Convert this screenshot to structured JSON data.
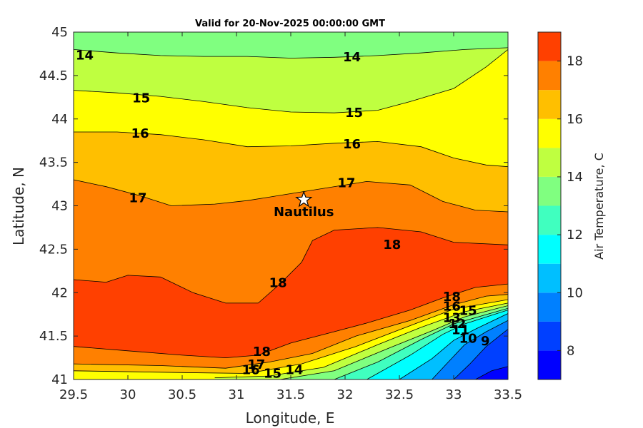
{
  "chart_data": {
    "type": "contour",
    "title": "Valid for 20-Nov-2025 00:00:00 GMT",
    "xlabel": "Longitude, E",
    "ylabel": "Latitude, N",
    "xlim": [
      29.5,
      33.5
    ],
    "ylim": [
      41,
      45
    ],
    "xticks": [
      "29.5",
      "30",
      "30.5",
      "31",
      "31.5",
      "32",
      "32.5",
      "33",
      "33.5"
    ],
    "xtick_values": [
      29.5,
      30,
      30.5,
      31,
      31.5,
      32,
      32.5,
      33,
      33.5
    ],
    "yticks": [
      "41",
      "41.5",
      "42",
      "42.5",
      "43",
      "43.5",
      "44",
      "44.5",
      "45"
    ],
    "ytick_values": [
      41,
      41.5,
      42,
      42.5,
      43,
      43.5,
      44,
      44.5,
      45
    ],
    "colorbar": {
      "label": "Air Temperature, C",
      "range": [
        7,
        19
      ],
      "ticks": [
        "8",
        "10",
        "12",
        "14",
        "16",
        "18"
      ],
      "tick_values": [
        8,
        10,
        12,
        14,
        16,
        18
      ],
      "level_colors": [
        {
          "from": 7,
          "to": 8,
          "color": "#0000ff"
        },
        {
          "from": 8,
          "to": 9,
          "color": "#0040ff"
        },
        {
          "from": 9,
          "to": 10,
          "color": "#0080ff"
        },
        {
          "from": 10,
          "to": 11,
          "color": "#00bfff"
        },
        {
          "from": 11,
          "to": 12,
          "color": "#00ffff"
        },
        {
          "from": 12,
          "to": 13,
          "color": "#40ffbf"
        },
        {
          "from": 13,
          "to": 14,
          "color": "#80ff80"
        },
        {
          "from": 14,
          "to": 15,
          "color": "#bfff40"
        },
        {
          "from": 15,
          "to": 16,
          "color": "#ffff00"
        },
        {
          "from": 16,
          "to": 17,
          "color": "#ffbf00"
        },
        {
          "from": 17,
          "to": 18,
          "color": "#ff8000"
        },
        {
          "from": 18,
          "to": 19,
          "color": "#ff4000"
        }
      ]
    },
    "contours": [
      {
        "level": 14,
        "points": [
          [
            29.5,
            44.8
          ],
          [
            29.9,
            44.76
          ],
          [
            30.3,
            44.73
          ],
          [
            30.7,
            44.72
          ],
          [
            31.1,
            44.72
          ],
          [
            31.5,
            44.7
          ],
          [
            31.9,
            44.71
          ],
          [
            32.3,
            44.73
          ],
          [
            32.7,
            44.76
          ],
          [
            33.1,
            44.8
          ],
          [
            33.5,
            44.82
          ]
        ]
      },
      {
        "level": 15,
        "points": [
          [
            29.5,
            44.33
          ],
          [
            29.9,
            44.3
          ],
          [
            30.3,
            44.26
          ],
          [
            30.7,
            44.2
          ],
          [
            31.1,
            44.13
          ],
          [
            31.5,
            44.08
          ],
          [
            31.9,
            44.07
          ],
          [
            32.3,
            44.1
          ],
          [
            32.6,
            44.2
          ],
          [
            33.0,
            44.35
          ],
          [
            33.3,
            44.6
          ],
          [
            33.5,
            44.8
          ]
        ]
      },
      {
        "level": 16,
        "points": [
          [
            29.5,
            43.85
          ],
          [
            29.9,
            43.85
          ],
          [
            30.3,
            43.82
          ],
          [
            30.7,
            43.76
          ],
          [
            31.1,
            43.68
          ],
          [
            31.5,
            43.69
          ],
          [
            31.9,
            43.72
          ],
          [
            32.3,
            43.74
          ],
          [
            32.7,
            43.68
          ],
          [
            33.0,
            43.55
          ],
          [
            33.3,
            43.47
          ],
          [
            33.5,
            43.45
          ]
        ]
      },
      {
        "level": 17,
        "points": [
          [
            29.5,
            43.3
          ],
          [
            29.8,
            43.22
          ],
          [
            30.1,
            43.12
          ],
          [
            30.4,
            43.0
          ],
          [
            30.8,
            43.02
          ],
          [
            31.1,
            43.06
          ],
          [
            31.4,
            43.12
          ],
          [
            31.8,
            43.2
          ],
          [
            32.2,
            43.28
          ],
          [
            32.6,
            43.24
          ],
          [
            32.9,
            43.05
          ],
          [
            33.2,
            42.95
          ],
          [
            33.5,
            42.93
          ]
        ]
      },
      {
        "level": 18,
        "points": [
          [
            29.5,
            42.15
          ],
          [
            29.8,
            42.12
          ],
          [
            30.0,
            42.2
          ],
          [
            30.3,
            42.18
          ],
          [
            30.6,
            42.0
          ],
          [
            30.9,
            41.88
          ],
          [
            31.2,
            41.88
          ],
          [
            31.4,
            42.1
          ],
          [
            31.6,
            42.35
          ],
          [
            31.7,
            42.6
          ],
          [
            31.9,
            42.72
          ],
          [
            32.3,
            42.75
          ],
          [
            32.7,
            42.7
          ],
          [
            33.0,
            42.58
          ],
          [
            33.5,
            42.55
          ]
        ]
      },
      {
        "level": 18,
        "points": [
          [
            29.5,
            41.38
          ],
          [
            30.0,
            41.33
          ],
          [
            30.5,
            41.28
          ],
          [
            30.9,
            41.25
          ],
          [
            31.2,
            41.28
          ],
          [
            31.5,
            41.42
          ],
          [
            31.9,
            41.55
          ],
          [
            32.2,
            41.65
          ],
          [
            32.6,
            41.8
          ],
          [
            32.9,
            41.94
          ],
          [
            33.2,
            42.06
          ],
          [
            33.5,
            42.1
          ]
        ]
      },
      {
        "level": 17,
        "points": [
          [
            29.5,
            41.18
          ],
          [
            30.3,
            41.16
          ],
          [
            30.9,
            41.13
          ],
          [
            31.3,
            41.2
          ],
          [
            31.7,
            41.3
          ],
          [
            32.1,
            41.5
          ],
          [
            32.6,
            41.68
          ],
          [
            33.0,
            41.86
          ],
          [
            33.3,
            41.96
          ],
          [
            33.5,
            41.98
          ]
        ]
      },
      {
        "level": 16,
        "points": [
          [
            29.5,
            41.1
          ],
          [
            30.5,
            41.08
          ],
          [
            31.1,
            41.07
          ],
          [
            31.6,
            41.18
          ],
          [
            32.1,
            41.38
          ],
          [
            32.6,
            41.62
          ],
          [
            33.0,
            41.81
          ],
          [
            33.5,
            41.92
          ]
        ]
      },
      {
        "level": 15,
        "points": [
          [
            30.8,
            41.02
          ],
          [
            31.3,
            41.04
          ],
          [
            31.8,
            41.14
          ],
          [
            32.3,
            41.4
          ],
          [
            32.7,
            41.6
          ],
          [
            33.1,
            41.78
          ],
          [
            33.5,
            41.88
          ]
        ]
      },
      {
        "level": 14,
        "points": [
          [
            31.4,
            41.0
          ],
          [
            31.9,
            41.1
          ],
          [
            32.4,
            41.36
          ],
          [
            32.8,
            41.56
          ],
          [
            33.1,
            41.72
          ],
          [
            33.5,
            41.85
          ]
        ]
      },
      {
        "level": 13,
        "points": [
          [
            31.9,
            41.0
          ],
          [
            32.3,
            41.2
          ],
          [
            32.7,
            41.46
          ],
          [
            33.0,
            41.64
          ],
          [
            33.5,
            41.82
          ]
        ]
      },
      {
        "level": 12,
        "points": [
          [
            32.2,
            41.0
          ],
          [
            32.6,
            41.28
          ],
          [
            32.9,
            41.52
          ],
          [
            33.1,
            41.64
          ],
          [
            33.5,
            41.8
          ]
        ]
      },
      {
        "level": 11,
        "points": [
          [
            32.5,
            41.0
          ],
          [
            32.8,
            41.24
          ],
          [
            33.0,
            41.45
          ],
          [
            33.2,
            41.58
          ],
          [
            33.5,
            41.76
          ]
        ]
      },
      {
        "level": 10,
        "points": [
          [
            32.8,
            41.0
          ],
          [
            32.95,
            41.2
          ],
          [
            33.1,
            41.4
          ],
          [
            33.3,
            41.55
          ],
          [
            33.5,
            41.68
          ]
        ]
      },
      {
        "level": 9,
        "points": [
          [
            33.0,
            41.0
          ],
          [
            33.15,
            41.18
          ],
          [
            33.3,
            41.38
          ],
          [
            33.5,
            41.58
          ]
        ]
      },
      {
        "level": 8,
        "points": [
          [
            33.2,
            41.0
          ],
          [
            33.35,
            41.1
          ],
          [
            33.5,
            41.15
          ]
        ]
      }
    ],
    "contour_labels": [
      {
        "text": "14",
        "x": 29.52,
        "y": 44.74
      },
      {
        "text": "14",
        "x": 31.98,
        "y": 44.72
      },
      {
        "text": "15",
        "x": 30.04,
        "y": 44.25
      },
      {
        "text": "15",
        "x": 32.0,
        "y": 44.08
      },
      {
        "text": "16",
        "x": 30.03,
        "y": 43.84
      },
      {
        "text": "16",
        "x": 31.98,
        "y": 43.72
      },
      {
        "text": "17",
        "x": 30.01,
        "y": 43.1
      },
      {
        "text": "17",
        "x": 31.93,
        "y": 43.27
      },
      {
        "text": "18",
        "x": 31.3,
        "y": 42.12
      },
      {
        "text": "18",
        "x": 32.35,
        "y": 42.56
      },
      {
        "text": "18",
        "x": 31.15,
        "y": 41.33
      },
      {
        "text": "17",
        "x": 31.1,
        "y": 41.18
      },
      {
        "text": "16",
        "x": 31.05,
        "y": 41.12
      },
      {
        "text": "15",
        "x": 31.25,
        "y": 41.08
      },
      {
        "text": "14",
        "x": 31.45,
        "y": 41.12
      },
      {
        "text": "18",
        "x": 32.9,
        "y": 41.96
      },
      {
        "text": "16",
        "x": 32.9,
        "y": 41.85
      },
      {
        "text": "15",
        "x": 33.05,
        "y": 41.8
      },
      {
        "text": "13",
        "x": 32.9,
        "y": 41.72
      },
      {
        "text": "12",
        "x": 32.95,
        "y": 41.65
      },
      {
        "text": "11",
        "x": 32.98,
        "y": 41.58
      },
      {
        "text": "10",
        "x": 33.05,
        "y": 41.48
      },
      {
        "text": "9",
        "x": 33.25,
        "y": 41.45
      }
    ],
    "markers": [
      {
        "label": "Nautilus",
        "x": 31.62,
        "y": 43.07,
        "symbol": "star"
      }
    ]
  }
}
